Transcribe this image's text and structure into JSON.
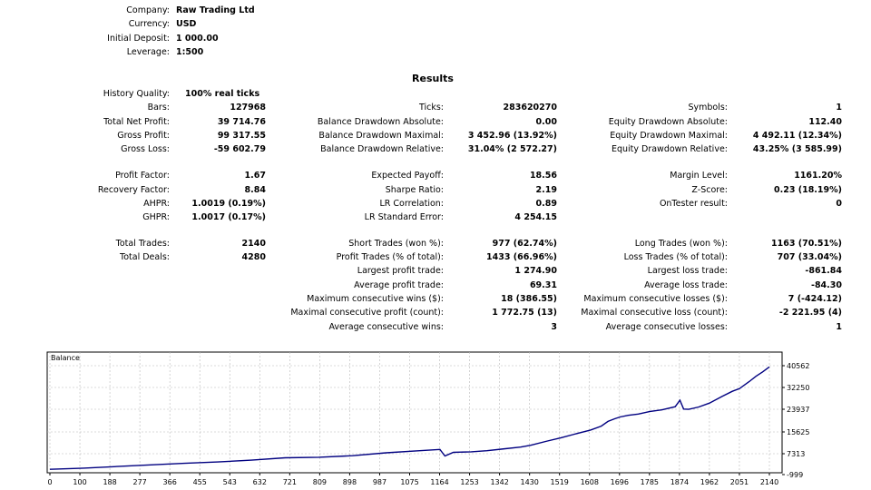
{
  "header": [
    {
      "label": "Company:",
      "value": "Raw Trading Ltd"
    },
    {
      "label": "Currency:",
      "value": "USD"
    },
    {
      "label": "Initial Deposit:",
      "value": "1 000.00"
    },
    {
      "label": "Leverage:",
      "value": "1:500"
    }
  ],
  "results_title": "Results",
  "history_quality": {
    "label": "History Quality:",
    "value": "100% real ticks"
  },
  "col1": [
    {
      "label": "Bars:",
      "value": "127968"
    },
    {
      "label": "Total Net Profit:",
      "value": "39 714.76"
    },
    {
      "label": "Gross Profit:",
      "value": "99 317.55"
    },
    {
      "label": "Gross Loss:",
      "value": "-59 602.79"
    },
    {
      "label": "Profit Factor:",
      "value": "1.67"
    },
    {
      "label": "Recovery Factor:",
      "value": "8.84"
    },
    {
      "label": "AHPR:",
      "value": "1.0019 (0.19%)"
    },
    {
      "label": "GHPR:",
      "value": "1.0017 (0.17%)"
    },
    {
      "label": "Total Trades:",
      "value": "2140"
    },
    {
      "label": "Total Deals:",
      "value": "4280"
    }
  ],
  "col2": [
    {
      "label": "Ticks:",
      "value": "283620270"
    },
    {
      "label": "Balance Drawdown Absolute:",
      "value": "0.00"
    },
    {
      "label": "Balance Drawdown Maximal:",
      "value": "3 452.96 (13.92%)"
    },
    {
      "label": "Balance Drawdown Relative:",
      "value": "31.04% (2 572.27)"
    },
    {
      "label": "Expected Payoff:",
      "value": "18.56"
    },
    {
      "label": "Sharpe Ratio:",
      "value": "2.19"
    },
    {
      "label": "LR Correlation:",
      "value": "0.89"
    },
    {
      "label": "LR Standard Error:",
      "value": "4 254.15"
    },
    {
      "label": "Short Trades (won %):",
      "value": "977 (62.74%)"
    },
    {
      "label": "Profit Trades (% of total):",
      "value": "1433 (66.96%)"
    },
    {
      "label": "Largest profit trade:",
      "value": "1 274.90"
    },
    {
      "label": "Average profit trade:",
      "value": "69.31"
    },
    {
      "label": "Maximum consecutive wins ($):",
      "value": "18 (386.55)"
    },
    {
      "label": "Maximal consecutive profit (count):",
      "value": "1 772.75 (13)"
    },
    {
      "label": "Average consecutive wins:",
      "value": "3"
    }
  ],
  "col3": [
    {
      "label": "Symbols:",
      "value": "1"
    },
    {
      "label": "Equity Drawdown Absolute:",
      "value": "112.40"
    },
    {
      "label": "Equity Drawdown Maximal:",
      "value": "4 492.11 (12.34%)"
    },
    {
      "label": "Equity Drawdown Relative:",
      "value": "43.25% (3 585.99)"
    },
    {
      "label": "Margin Level:",
      "value": "1161.20%"
    },
    {
      "label": "Z-Score:",
      "value": "0.23 (18.19%)"
    },
    {
      "label": "OnTester result:",
      "value": "0"
    },
    {
      "label": "Long Trades (won %):",
      "value": "1163 (70.51%)"
    },
    {
      "label": "Loss Trades (% of total):",
      "value": "707 (33.04%)"
    },
    {
      "label": "Largest loss trade:",
      "value": "-861.84"
    },
    {
      "label": "Average loss trade:",
      "value": "-84.30"
    },
    {
      "label": "Maximum consecutive losses ($):",
      "value": "7 (-424.12)"
    },
    {
      "label": "Maximal consecutive loss (count):",
      "value": "-2 221.95 (4)"
    },
    {
      "label": "Average consecutive losses:",
      "value": "1"
    }
  ],
  "chart_data": {
    "type": "line",
    "title": "Balance",
    "xlabel": "",
    "ylabel": "",
    "x_ticks": [
      "0",
      "100",
      "188",
      "277",
      "366",
      "455",
      "543",
      "632",
      "721",
      "809",
      "898",
      "987",
      "1075",
      "1164",
      "1253",
      "1342",
      "1430",
      "1519",
      "1608",
      "1696",
      "1785",
      "1874",
      "1962",
      "2051",
      "2140"
    ],
    "y_ticks": [
      "40562",
      "32250",
      "23937",
      "15625",
      "7313",
      "-999"
    ],
    "xlim": [
      0,
      2140
    ],
    "ylim": [
      -999,
      40562
    ],
    "grid": true,
    "line_color": "#000080",
    "series": [
      {
        "name": "",
        "x": [
          0,
          100,
          200,
          300,
          400,
          500,
          600,
          700,
          800,
          900,
          1000,
          1100,
          1160,
          1175,
          1200,
          1253,
          1300,
          1342,
          1400,
          1430,
          1480,
          1519,
          1560,
          1608,
          1640,
          1660,
          1680,
          1696,
          1720,
          1750,
          1785,
          1820,
          1860,
          1874,
          1885,
          1900,
          1930,
          1962,
          2000,
          2030,
          2051,
          2080,
          2100,
          2120,
          2140
        ],
        "y": [
          1000,
          1450,
          2100,
          2700,
          3300,
          3800,
          4500,
          5400,
          5600,
          6200,
          7300,
          8100,
          8600,
          6100,
          7500,
          7700,
          8100,
          8700,
          9500,
          10200,
          11800,
          13000,
          14400,
          16000,
          17500,
          19300,
          20300,
          21000,
          21600,
          22100,
          23100,
          23700,
          24900,
          27400,
          24000,
          23900,
          24800,
          26300,
          28900,
          30800,
          31800,
          34500,
          36500,
          38200,
          40100
        ]
      }
    ]
  }
}
